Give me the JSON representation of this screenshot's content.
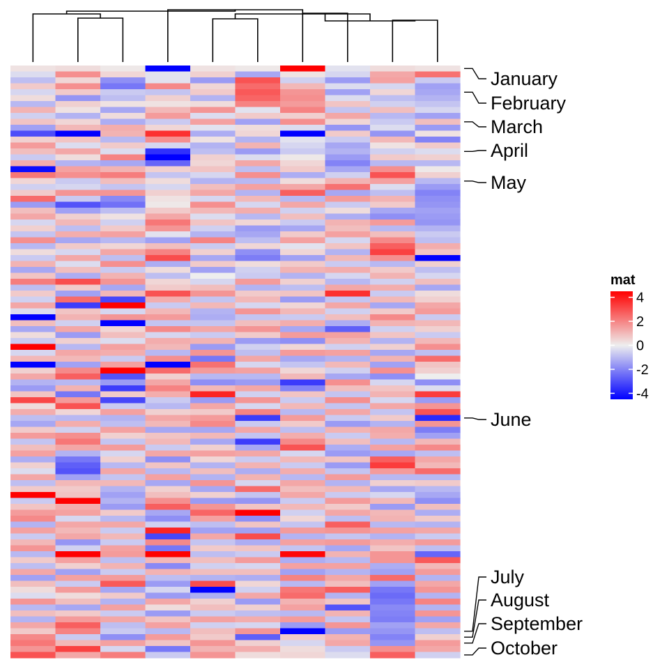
{
  "chart_data": {
    "type": "heatmap",
    "title": "",
    "n_rows": 100,
    "n_cols": 10,
    "row_mark_positions": [
      1,
      5,
      10,
      15,
      20,
      60,
      96,
      97,
      98,
      100
    ],
    "row_mark_labels": [
      "January",
      "February",
      "March",
      "April",
      "May",
      "June",
      "July",
      "August",
      "September",
      "October"
    ],
    "legend": {
      "title": "mat",
      "ticks": [
        4,
        2,
        0,
        -2,
        -4
      ],
      "tick_labels": [
        "4",
        "2",
        "0",
        "-2",
        "-4"
      ],
      "range": [
        -4.5,
        4.5
      ],
      "colors": {
        "low": "#0000ff",
        "mid": "#eeeeee",
        "high": "#ff0000"
      }
    },
    "values": [
      [
        0.2,
        0.3,
        0.1,
        -4.2,
        0.2,
        0.1,
        4.3,
        -0.2,
        0.3,
        0.2
      ],
      [
        -0.3,
        1.6,
        0.4,
        -0.2,
        0.5,
        -1.2,
        0.2,
        -0.4,
        1.2,
        2.1
      ],
      [
        -0.8,
        0.4,
        -1.6,
        -0.2,
        -1.4,
        2.6,
        -0.5,
        -1.4,
        1.3,
        -0.6
      ],
      [
        0.6,
        1.6,
        -2.0,
        1.7,
        0.4,
        2.2,
        0.9,
        -0.3,
        -0.4,
        -1.3
      ],
      [
        -0.4,
        0.6,
        -0.6,
        -0.7,
        0.6,
        2.5,
        1.5,
        -1.3,
        0.4,
        -1.2
      ],
      [
        0.3,
        -1.5,
        -0.8,
        0.5,
        -1.0,
        2.3,
        1.6,
        -0.3,
        -0.8,
        -1.0
      ],
      [
        -0.9,
        0.5,
        0.2,
        0.2,
        0.3,
        1.8,
        1.4,
        0.7,
        -0.5,
        -0.7
      ],
      [
        1.0,
        0.2,
        -1.2,
        0.9,
        1.5,
        -0.2,
        1.8,
        -0.7,
        0.8,
        -0.4
      ],
      [
        -0.5,
        -1.0,
        0.3,
        1.4,
        -0.3,
        0.6,
        0.5,
        1.2,
        -0.9,
        -1.3
      ],
      [
        0.7,
        0.4,
        -1.1,
        -0.6,
        1.3,
        -1.3,
        1.6,
        0.4,
        -0.6,
        0.8
      ],
      [
        -1.3,
        0.9,
        1.1,
        0.4,
        -0.2,
        0.3,
        -0.3,
        -1.5,
        -0.3,
        -1.4
      ],
      [
        -2.7,
        -4.0,
        1.0,
        3.2,
        -1.1,
        0.4,
        -4.3,
        0.6,
        -1.5,
        0.2
      ],
      [
        0.5,
        0.7,
        -0.9,
        1.6,
        0.2,
        -1.0,
        -0.2,
        -0.6,
        0.9,
        -1.8
      ],
      [
        1.4,
        -0.3,
        0.6,
        -0.4,
        -1.0,
        1.0,
        -0.4,
        -1.2,
        0.2,
        0.6
      ],
      [
        0.8,
        1.2,
        -0.3,
        -3.2,
        -0.8,
        -1.4,
        -0.6,
        -1.0,
        -0.5,
        -0.3
      ],
      [
        -0.6,
        0.3,
        1.8,
        -4.0,
        0.5,
        -0.3,
        0.1,
        -1.4,
        0.6,
        0.5
      ],
      [
        1.1,
        -1.0,
        -1.2,
        -2.3,
        0.4,
        1.2,
        0.4,
        -1.8,
        -0.9,
        -0.9
      ],
      [
        -3.8,
        1.3,
        1.0,
        0.5,
        0.7,
        -0.8,
        0.6,
        -1.2,
        1.6,
        0.1
      ],
      [
        2.0,
        1.6,
        1.9,
        -0.7,
        -0.4,
        1.6,
        -1.1,
        -0.5,
        2.6,
        0.5
      ],
      [
        0.4,
        -0.6,
        0.8,
        0.3,
        -1.0,
        -0.9,
        0.3,
        1.0,
        1.3,
        -0.9
      ],
      [
        -0.5,
        -0.4,
        -0.7,
        -0.4,
        0.8,
        1.3,
        1.2,
        2.1,
        -0.3,
        -1.4
      ],
      [
        0.6,
        1.5,
        1.5,
        0.5,
        1.2,
        -1.0,
        2.4,
        -1.2,
        -0.8,
        -1.8
      ],
      [
        2.2,
        -0.6,
        -1.7,
        0.2,
        -0.4,
        0.9,
        -0.9,
        1.4,
        1.0,
        -1.6
      ],
      [
        -1.4,
        -2.6,
        -2.1,
        0.1,
        1.6,
        -0.4,
        1.2,
        -0.6,
        0.6,
        -1.5
      ],
      [
        0.8,
        -1.3,
        -0.8,
        0.6,
        0.9,
        1.1,
        -0.5,
        0.3,
        -1.2,
        -1.3
      ],
      [
        1.2,
        0.5,
        0.2,
        1.2,
        -0.3,
        -0.9,
        0.8,
        -1.1,
        -1.6,
        -1.4
      ],
      [
        -0.4,
        0.9,
        -0.5,
        2.0,
        0.7,
        0.4,
        -0.6,
        1.0,
        1.4,
        -1.5
      ],
      [
        0.5,
        -0.8,
        0.6,
        1.5,
        -0.5,
        -1.4,
        -1.2,
        0.8,
        -0.9,
        -1.0
      ],
      [
        -0.7,
        1.1,
        1.3,
        -0.2,
        -1.0,
        -1.2,
        0.6,
        1.3,
        0.8,
        -0.6
      ],
      [
        1.6,
        -1.2,
        -0.9,
        -1.3,
        1.8,
        -0.8,
        1.3,
        -0.4,
        1.7,
        -0.8
      ],
      [
        -0.9,
        0.6,
        0.4,
        0.8,
        -0.6,
        0.4,
        -0.2,
        0.7,
        2.4,
        1.1
      ],
      [
        0.3,
        -0.4,
        1.2,
        1.8,
        0.5,
        -1.6,
        0.4,
        -1.0,
        2.9,
        0.7
      ],
      [
        -0.6,
        1.2,
        -0.8,
        2.7,
        -1.2,
        -1.9,
        -1.3,
        0.9,
        1.6,
        -4.3
      ],
      [
        1.0,
        -0.3,
        1.6,
        -1.1,
        0.6,
        0.3,
        0.6,
        -0.6,
        -0.9,
        0.5
      ],
      [
        -1.2,
        0.8,
        -0.6,
        0.3,
        -1.3,
        -0.5,
        1.0,
        1.1,
        0.6,
        -0.8
      ],
      [
        0.7,
        -1.1,
        1.0,
        -0.8,
        0.0,
        -0.6,
        -1.0,
        -0.4,
        1.0,
        -0.4
      ],
      [
        1.9,
        2.7,
        1.5,
        0.4,
        -0.4,
        1.4,
        0.5,
        -0.9,
        -0.5,
        0.8
      ],
      [
        -0.8,
        0.6,
        -1.2,
        0.6,
        0.8,
        -1.0,
        -0.8,
        1.2,
        1.1,
        -1.2
      ],
      [
        0.6,
        -1.3,
        0.9,
        2.6,
        1.5,
        0.6,
        0.7,
        3.2,
        -0.6,
        0.3
      ],
      [
        -0.5,
        2.2,
        -2.8,
        1.1,
        -0.7,
        0.9,
        -1.4,
        -0.7,
        0.9,
        0.5
      ],
      [
        1.2,
        -3.0,
        4.0,
        -0.6,
        0.9,
        -0.4,
        0.4,
        1.2,
        -1.2,
        1.2
      ],
      [
        -0.3,
        0.7,
        -0.4,
        0.9,
        -1.0,
        1.5,
        0.9,
        -0.5,
        0.6,
        1.4
      ],
      [
        -4.3,
        1.0,
        1.5,
        1.4,
        -1.1,
        -0.7,
        -0.6,
        0.8,
        1.7,
        -0.6
      ],
      [
        0.8,
        -0.5,
        -4.0,
        -0.7,
        -0.7,
        0.8,
        1.1,
        -1.1,
        1.0,
        0.9
      ],
      [
        -1.2,
        1.2,
        0.4,
        1.7,
        1.2,
        1.5,
        -1.2,
        -2.4,
        -0.5,
        0.5
      ],
      [
        0.3,
        -1.4,
        0.8,
        -0.4,
        -0.6,
        0.6,
        1.4,
        1.3,
        0.7,
        -0.6
      ],
      [
        -0.6,
        0.5,
        -0.3,
        1.1,
        1.0,
        -1.4,
        -1.6,
        1.0,
        -1.0,
        0.9
      ],
      [
        4.1,
        -0.9,
        1.3,
        0.9,
        -1.4,
        -0.5,
        0.4,
        -0.5,
        0.5,
        1.6
      ],
      [
        -0.4,
        1.2,
        1.1,
        -0.9,
        1.5,
        -0.8,
        1.4,
        1.3,
        -1.2,
        -0.8
      ],
      [
        0.9,
        0.9,
        -0.6,
        1.6,
        -2.0,
        1.2,
        -1.2,
        -1.0,
        1.0,
        2.2
      ],
      [
        -4.0,
        -1.3,
        1.3,
        -4.2,
        2.1,
        -0.4,
        -0.7,
        0.9,
        -1.3,
        0.7
      ],
      [
        0.5,
        1.7,
        4.1,
        2.2,
        1.4,
        1.3,
        0.4,
        -0.5,
        1.6,
        0.5
      ],
      [
        1.2,
        2.4,
        -2.6,
        0.5,
        -0.9,
        -0.9,
        0.9,
        -1.2,
        -1.6,
        0.0
      ],
      [
        -1.0,
        -0.9,
        -1.4,
        1.2,
        -1.6,
        -1.4,
        -3.0,
        1.6,
        -0.4,
        -1.6
      ],
      [
        -1.4,
        1.0,
        -3.0,
        1.8,
        0.9,
        1.2,
        -1.8,
        0.8,
        0.7,
        -0.3
      ],
      [
        0.7,
        -2.0,
        0.6,
        1.1,
        3.4,
        -0.5,
        0.7,
        -0.7,
        1.0,
        3.0
      ],
      [
        2.8,
        1.4,
        -2.8,
        -0.6,
        -1.4,
        1.5,
        -0.6,
        1.6,
        -0.4,
        -1.4
      ],
      [
        0.3,
        2.6,
        -0.6,
        -0.9,
        1.2,
        -0.4,
        0.9,
        -0.7,
        1.2,
        1.5
      ],
      [
        1.1,
        0.4,
        1.3,
        0.5,
        0.6,
        1.8,
        -0.9,
        1.2,
        -0.7,
        2.6
      ],
      [
        -0.8,
        -0.9,
        -1.0,
        1.2,
        1.4,
        -3.0,
        1.4,
        -0.6,
        0.6,
        -3.3
      ],
      [
        -1.2,
        1.1,
        -0.8,
        0.9,
        1.7,
        -0.6,
        0.6,
        -1.4,
        -1.0,
        1.5
      ],
      [
        0.6,
        -0.5,
        1.3,
        -1.2,
        -1.2,
        1.2,
        -0.8,
        1.0,
        1.2,
        -1.9
      ],
      [
        1.4,
        1.6,
        0.5,
        0.7,
        0.9,
        -0.7,
        1.1,
        -0.6,
        1.1,
        -1.3
      ],
      [
        -0.7,
        2.0,
        -0.7,
        0.9,
        -1.2,
        -3.0,
        1.7,
        0.8,
        -0.9,
        0.9
      ],
      [
        0.8,
        1.2,
        1.4,
        -0.6,
        0.5,
        -1.2,
        2.6,
        -1.1,
        1.3,
        1.7
      ],
      [
        1.3,
        -1.0,
        -0.4,
        1.2,
        1.3,
        1.2,
        -0.4,
        -1.4,
        -1.2,
        -0.8
      ],
      [
        -1.1,
        -2.0,
        0.5,
        -1.6,
        0.4,
        -0.6,
        0.9,
        0.7,
        2.4,
        1.2
      ],
      [
        0.5,
        -2.4,
        -0.9,
        0.7,
        -1.0,
        1.0,
        -0.6,
        -1.4,
        3.0,
        0.9
      ],
      [
        -0.3,
        -2.6,
        1.2,
        -0.9,
        0.8,
        -1.1,
        1.1,
        -0.7,
        1.4,
        2.2
      ],
      [
        1.2,
        -1.3,
        -0.7,
        1.3,
        -1.0,
        1.0,
        -0.9,
        1.4,
        -0.9,
        -0.9
      ],
      [
        -0.8,
        0.9,
        0.9,
        -1.2,
        1.5,
        -0.4,
        1.2,
        -1.0,
        0.5,
        0.6
      ],
      [
        0.6,
        0.6,
        -1.0,
        0.5,
        -1.2,
        2.2,
        0.8,
        0.9,
        -1.2,
        -0.9
      ],
      [
        4.3,
        0.7,
        -1.3,
        0.8,
        0.5,
        -0.7,
        1.2,
        -0.6,
        -0.4,
        -1.2
      ],
      [
        -0.6,
        4.4,
        -1.0,
        1.6,
        -1.4,
        -1.5,
        -0.6,
        1.4,
        0.9,
        -1.6
      ],
      [
        0.7,
        1.1,
        -1.4,
        2.4,
        1.5,
        0.7,
        0.9,
        0.6,
        -1.4,
        0.8
      ],
      [
        1.4,
        1.3,
        0.6,
        -1.2,
        2.3,
        4.2,
        -0.5,
        1.2,
        0.9,
        -1.1
      ],
      [
        1.7,
        -0.4,
        -0.9,
        -1.6,
        1.3,
        -1.6,
        0.4,
        -0.8,
        1.0,
        0.6
      ],
      [
        -1.0,
        1.2,
        1.2,
        -0.5,
        -0.8,
        0.7,
        -0.7,
        2.4,
        -0.9,
        -1.0
      ],
      [
        1.3,
        0.9,
        -0.6,
        3.4,
        -1.3,
        -1.3,
        1.4,
        1.5,
        1.3,
        1.2
      ],
      [
        -0.6,
        1.2,
        0.9,
        -2.8,
        1.2,
        2.7,
        -1.0,
        -0.7,
        -1.0,
        -0.6
      ],
      [
        0.9,
        -1.5,
        -0.6,
        1.7,
        -0.7,
        -1.1,
        1.3,
        1.4,
        1.1,
        1.4
      ],
      [
        1.5,
        -0.5,
        1.3,
        -2.0,
        0.6,
        0.7,
        -0.7,
        -1.2,
        0.7,
        -0.8
      ],
      [
        -0.9,
        4.3,
        1.4,
        4.2,
        -0.8,
        -0.6,
        3.9,
        1.0,
        1.5,
        -2.3
      ],
      [
        0.6,
        1.3,
        -0.8,
        0.9,
        0.8,
        1.4,
        -1.1,
        -0.9,
        1.5,
        2.5
      ],
      [
        -0.8,
        0.5,
        1.0,
        -1.7,
        -0.5,
        -0.4,
        1.3,
        1.3,
        -1.1,
        0.9
      ],
      [
        1.2,
        -1.3,
        -0.6,
        1.0,
        0.8,
        0.8,
        -1.3,
        -1.0,
        -1.3,
        1.4
      ],
      [
        -1.3,
        1.3,
        1.4,
        -0.8,
        -1.0,
        -1.1,
        1.8,
        1.2,
        2.2,
        -1.0
      ],
      [
        0.8,
        -0.6,
        2.5,
        -1.4,
        2.7,
        0.4,
        -0.9,
        0.8,
        -1.3,
        1.2
      ],
      [
        0.3,
        1.4,
        -1.2,
        -0.4,
        -4.2,
        -0.5,
        2.0,
        2.4,
        -2.0,
        1.5
      ],
      [
        -0.3,
        0.3,
        0.6,
        -1.4,
        -1.1,
        1.2,
        2.2,
        -1.0,
        -2.2,
        -1.0
      ],
      [
        1.5,
        0.8,
        -1.0,
        1.2,
        0.5,
        -1.4,
        1.0,
        0.7,
        -2.0,
        1.8
      ],
      [
        -0.9,
        -1.2,
        1.3,
        0.3,
        0.8,
        0.5,
        1.3,
        -2.6,
        -1.7,
        -1.0
      ],
      [
        0.8,
        0.6,
        -0.6,
        -1.4,
        -0.6,
        -0.8,
        -0.9,
        1.0,
        -1.8,
        1.5
      ],
      [
        -1.0,
        1.4,
        1.2,
        0.7,
        1.3,
        1.1,
        1.4,
        -0.7,
        -1.9,
        -1.3
      ],
      [
        1.2,
        2.4,
        -0.8,
        1.3,
        -0.5,
        -0.4,
        -1.4,
        1.5,
        -1.3,
        1.2
      ],
      [
        0.6,
        1.8,
        -0.6,
        -0.9,
        0.8,
        1.5,
        -4.3,
        -1.4,
        -1.5,
        -0.8
      ],
      [
        1.7,
        -0.6,
        -1.6,
        1.4,
        0.6,
        -2.4,
        0.6,
        1.0,
        -1.8,
        0.5
      ],
      [
        2.0,
        0.9,
        1.3,
        0.7,
        1.5,
        0.5,
        -0.4,
        1.2,
        -1.5,
        1.4
      ],
      [
        1.5,
        2.9,
        -0.4,
        -2.0,
        1.0,
        1.1,
        0.3,
        -0.6,
        1.6,
        1.2
      ],
      [
        2.6,
        1.2,
        1.9,
        -0.6,
        1.5,
        0.3,
        0.4,
        -0.3,
        2.4,
        -0.5
      ]
    ]
  }
}
